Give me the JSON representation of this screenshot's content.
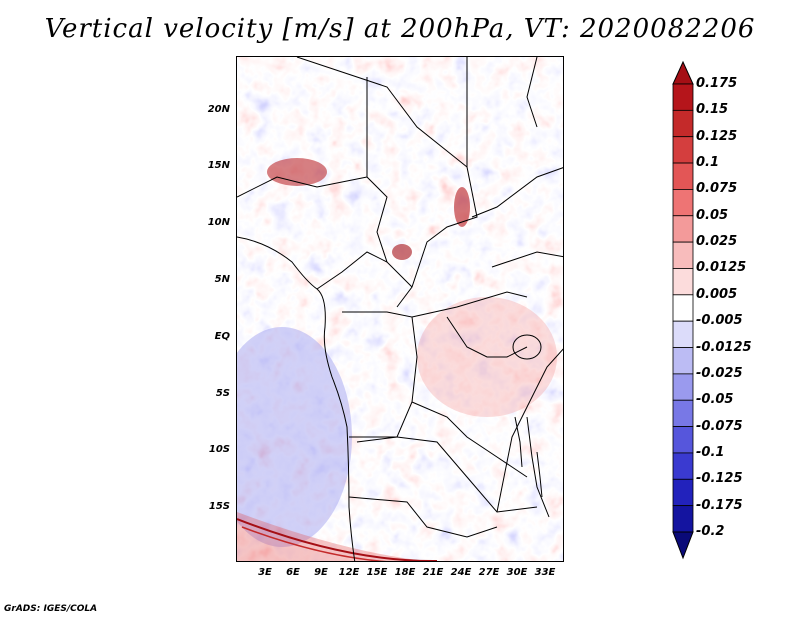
{
  "title": "Vertical velocity [m/s] at 200hPa, VT: 2020082206",
  "map": {
    "lat_labels": [
      "20N",
      "15N",
      "10N",
      "5N",
      "EQ",
      "5S",
      "10S",
      "15S"
    ],
    "lon_labels": [
      "3E",
      "6E",
      "9E",
      "12E",
      "15E",
      "18E",
      "21E",
      "24E",
      "27E",
      "30E",
      "33E"
    ],
    "field": "vertical velocity (blue = descent, red = ascent)"
  },
  "colorbar": {
    "levels": [
      "0.175",
      "0.15",
      "0.125",
      "0.1",
      "0.075",
      "0.05",
      "0.025",
      "0.0125",
      "0.005",
      "-0.005",
      "-0.0125",
      "-0.025",
      "-0.05",
      "-0.075",
      "-0.1",
      "-0.125",
      "-0.175",
      "-0.2"
    ],
    "colors": [
      "#a50f15",
      "#b5151b",
      "#c42a2a",
      "#d43e3e",
      "#e35656",
      "#ee7474",
      "#f39a9a",
      "#f8bcbc",
      "#fcdcdc",
      "#ffffff",
      "#dcdcfa",
      "#bcbcf4",
      "#9a9aee",
      "#7878e6",
      "#5656dc",
      "#3a3ad0",
      "#2222bc",
      "#1414a0",
      "#0a0a78"
    ]
  },
  "credit": "GrADS: IGES/COLA"
}
